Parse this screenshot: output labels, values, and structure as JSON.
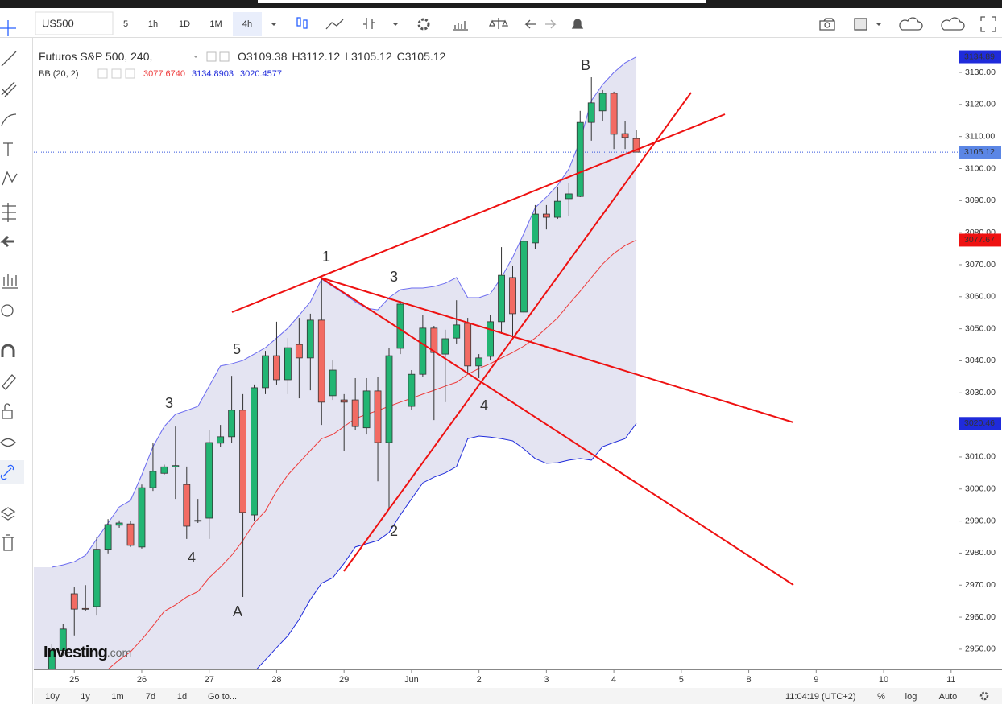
{
  "toolbar": {
    "symbol": "US500",
    "intervals": [
      "5",
      "1h",
      "1D",
      "1M",
      "4h"
    ]
  },
  "bottom_bar": {
    "ranges": [
      "10y",
      "1y",
      "1m",
      "7d",
      "1d"
    ],
    "goto": "Go to...",
    "time": "11:04:19 (UTC+2)",
    "options": [
      "%",
      "log",
      "Auto"
    ]
  },
  "watermark": [
    "Investing",
    ".com"
  ],
  "chart_data": {
    "type": "candlestick",
    "title": "Futuros S&P 500, 240,",
    "ohlc_labels": [
      "O",
      "H",
      "L",
      "C"
    ],
    "bb_legend": {
      "text": "BB (20, 2)",
      "values": [
        {
          "value": 3077.674,
          "label": "3077.6740"
        },
        {
          "value": 3134.8903,
          "label": "3134.8903"
        },
        {
          "value": 3020.4577,
          "label": "3020.4577"
        }
      ]
    },
    "open": [
      2943.6,
      2949.6,
      2967.3,
      2962.7,
      2963.3,
      2981.2,
      2988.7,
      2989.1,
      2981.9,
      3000.4,
      3004.9,
      3006.9,
      3001.4,
      2990,
      2990.9,
      3014.3,
      3016.3,
      3024.6,
      2991.9,
      3031.6,
      3041.6,
      3034.1,
      3045.1,
      3040.9,
      3052.7,
      3029.1,
      3027.8,
      3027.8,
      3019.1,
      3030.6,
      3014.5,
      3043.9,
      3025.8,
      3035.8,
      3050.2,
      3042.1,
      3047.1,
      3051.7,
      3038.4,
      3041.4,
      3052.2,
      3066,
      3055.2,
      3076.8,
      3085.8,
      3084.8,
      3090.6,
      3091.3,
      3114.4,
      3118,
      3123.5,
      3110.9,
      3109.38
    ],
    "high": [
      2951.6,
      2957.8,
      2969.3,
      2970,
      2984.9,
      2990.6,
      2990.2,
      2989.9,
      3001.4,
      3014.3,
      3007.6,
      3019.5,
      3007,
      2996.9,
      3018.3,
      3020,
      3035.3,
      3029.6,
      3032.6,
      3043.1,
      3052.2,
      3047.1,
      3053.4,
      3054.7,
      3066,
      3040.1,
      3029.6,
      3034.6,
      3034.6,
      3035.1,
      3044.1,
      3058.7,
      3037.1,
      3054.2,
      3050.9,
      3049.7,
      3058.9,
      3053.4,
      3042.1,
      3054.2,
      3075.5,
      3069.7,
      3078.3,
      3088.6,
      3088.6,
      3094.3,
      3095.4,
      3118,
      3128.5,
      3124.5,
      3124,
      3114.9,
      3112.12
    ],
    "low": [
      2942.8,
      2948,
      2954.3,
      2962,
      2960.5,
      2979.9,
      2987.9,
      2981.9,
      2981.4,
      2999.4,
      3004.5,
      2996.9,
      2984.4,
      2989.4,
      2984.4,
      3013,
      3014.5,
      2966.3,
      2989.9,
      3029.6,
      3032.6,
      3029.6,
      3028.3,
      3030.8,
      3020,
      3027.8,
      3012,
      3018.3,
      3017,
      3002.4,
      2993.9,
      3042.1,
      3024.6,
      3035.1,
      3021.5,
      3027.1,
      3045.4,
      3035.9,
      3034.6,
      3040.1,
      3048.4,
      3047.1,
      3054.2,
      3074.8,
      3081,
      3084.3,
      3085.3,
      3091.1,
      3108.7,
      3114.9,
      3106.1,
      3106.1,
      3105.12
    ],
    "close": [
      2949.6,
      2956.3,
      2962.5,
      2962.5,
      2981.2,
      2988.9,
      2989.4,
      2982.4,
      3000.4,
      3005.5,
      3006.9,
      3007.3,
      2988.4,
      2990.2,
      3014.5,
      3016.3,
      3024.6,
      2992.7,
      3031.6,
      3041.6,
      3034.1,
      3044.1,
      3040.9,
      3052.7,
      3027.1,
      3037.1,
      3027.1,
      3019.5,
      3030.6,
      3014.5,
      3041.6,
      3057.7,
      3035.8,
      3050.2,
      3042.6,
      3046.9,
      3051.2,
      3038.4,
      3040.9,
      3052.2,
      3066.7,
      3054.7,
      3077.3,
      3085.8,
      3084.8,
      3089.8,
      3092.1,
      3114.4,
      3120.5,
      3123.5,
      3110.7,
      3109.7,
      3105.12
    ],
    "up_color": "#22b573",
    "down_color": "#f26b63",
    "last_color": "#5b86e5",
    "series": [
      {
        "color": "#6b6bf0",
        "values": [
          2975.6,
          2976.3,
          2977.3,
          2979.3,
          2984.4,
          2989.4,
          2994.4,
          2996.4,
          3004.4,
          3013.2,
          3019.5,
          3023.3,
          3024.5,
          3025.8,
          3032.1,
          3038.4,
          3039.1,
          3040.1,
          3042.1,
          3044.1,
          3047.1,
          3050.2,
          3054.2,
          3058.4,
          3065.5,
          3063.2,
          3060.9,
          3058.4,
          3056.4,
          3055.9,
          3059.7,
          3062.2,
          3062.7,
          3062.7,
          3063.2,
          3064.2,
          3066,
          3059.7,
          3059.7,
          3060.9,
          3066,
          3072.3,
          3079.8,
          3087.8,
          3091.1,
          3094.8,
          3099.9,
          3108.7,
          3121.2,
          3126.2,
          3130,
          3133,
          3134.89
        ]
      },
      {
        "color": "#ee3b3b",
        "values": [
          null,
          null,
          null,
          null,
          null,
          2943.7,
          2946.7,
          2949.2,
          2953,
          2957.3,
          2961.8,
          2963.8,
          2966.3,
          2968,
          2972.3,
          2975.6,
          2979.3,
          2983.9,
          2989.4,
          2993.1,
          2999.4,
          3004.4,
          3008.2,
          3012,
          3015.7,
          3017,
          3019.5,
          3022,
          3023.3,
          3024.5,
          3025.8,
          3027.1,
          3028.3,
          3029.6,
          3030.8,
          3032.1,
          3033.3,
          3035.8,
          3037.6,
          3039.1,
          3040.9,
          3042.6,
          3044.6,
          3047.1,
          3050.2,
          3053.4,
          3057.7,
          3061.7,
          3066,
          3070.2,
          3073.5,
          3076,
          3077.67
        ]
      },
      {
        "color": "#1f2bdb",
        "values": [
          null,
          null,
          null,
          null,
          null,
          null,
          null,
          null,
          null,
          null,
          null,
          null,
          null,
          null,
          null,
          null,
          null,
          null,
          2942.9,
          2946.7,
          2950.5,
          2954.2,
          2959.3,
          2965.5,
          2970.6,
          2972.3,
          2976.8,
          2981.9,
          2982.9,
          2983.9,
          2986.4,
          2991.9,
          2996.9,
          3001.9,
          3003.7,
          3005,
          3007,
          3015.7,
          3016.5,
          3016.2,
          3015.7,
          3015,
          3012.5,
          3009.5,
          3008,
          3008.2,
          3009,
          3009.5,
          3009,
          3013.2,
          3014.5,
          3015.7,
          3020.46
        ]
      }
    ],
    "band_fill": "#e4e4f2",
    "xlim": [
      -1.6,
      80.66
    ],
    "xticks": [
      {
        "value": 2,
        "label": "25"
      },
      {
        "value": 8,
        "label": "26"
      },
      {
        "value": 14,
        "label": "27"
      },
      {
        "value": 20,
        "label": "28"
      },
      {
        "value": 26,
        "label": "29"
      },
      {
        "value": 32,
        "label": "Jun"
      },
      {
        "value": 38,
        "label": "2"
      },
      {
        "value": 44,
        "label": "3"
      },
      {
        "value": 50,
        "label": "4"
      },
      {
        "value": 56,
        "label": "5"
      },
      {
        "value": 62,
        "label": "8"
      },
      {
        "value": 68,
        "label": "9"
      },
      {
        "value": 74,
        "label": "10"
      },
      {
        "value": 80,
        "label": "11"
      }
    ],
    "ylim": [
      2943.7,
      3140.8
    ],
    "yticks": [
      {
        "value": 2950,
        "label": "2950.00"
      },
      {
        "value": 2960,
        "label": "2960.00"
      },
      {
        "value": 2970,
        "label": "2970.00"
      },
      {
        "value": 2980,
        "label": "2980.00"
      },
      {
        "value": 2990,
        "label": "2990.00"
      },
      {
        "value": 3000,
        "label": "3000.00"
      },
      {
        "value": 3010,
        "label": "3010.00"
      },
      {
        "value": 3020,
        "label": "3020.00"
      },
      {
        "value": 3030,
        "label": "3030.00"
      },
      {
        "value": 3040,
        "label": "3040.00"
      },
      {
        "value": 3050,
        "label": "3050.00"
      },
      {
        "value": 3060,
        "label": "3060.00"
      },
      {
        "value": 3070,
        "label": "3070.00"
      },
      {
        "value": 3080,
        "label": "3080.00"
      },
      {
        "value": 3090,
        "label": "3090.00"
      },
      {
        "value": 3100,
        "label": "3100.00"
      },
      {
        "value": 3110,
        "label": "3110.00"
      },
      {
        "value": 3120,
        "label": "3120.00"
      },
      {
        "value": 3130,
        "label": "3130.00"
      }
    ],
    "grid": false,
    "annotations": [
      "1",
      "3",
      "5",
      "3",
      "4",
      "A",
      "2",
      "4",
      "B"
    ]
  }
}
